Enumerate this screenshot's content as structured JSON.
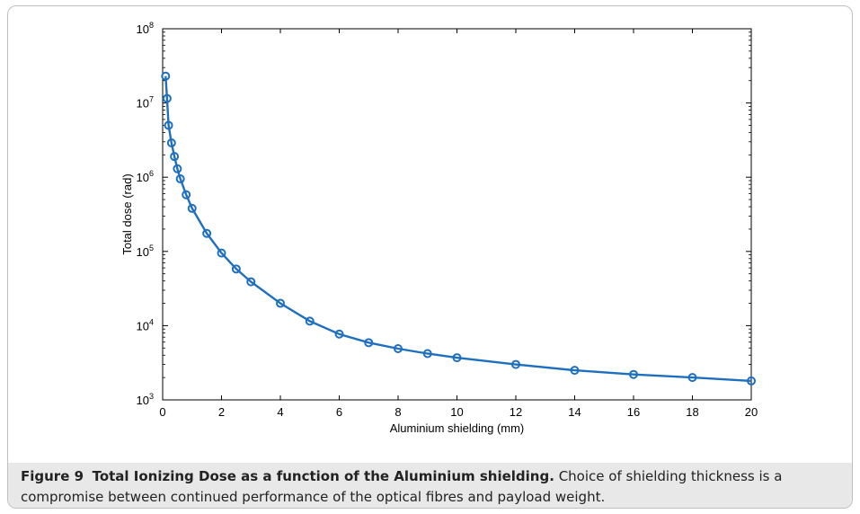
{
  "caption": {
    "label": "Figure 9",
    "title": "Total Ionizing Dose as a function of the Aluminium shielding.",
    "text": "Choice of shielding thickness is a compromise between continued performance of the optical fibres and payload weight."
  },
  "chart_data": {
    "type": "line",
    "title": "",
    "xlabel": "Aluminium shielding (mm)",
    "ylabel": "Total dose (rad)",
    "xlim": [
      0,
      20
    ],
    "ylim": [
      1000,
      100000000
    ],
    "yscale": "log",
    "x_ticks": [
      0,
      2,
      4,
      6,
      8,
      10,
      12,
      14,
      16,
      18,
      20
    ],
    "y_ticks": [
      {
        "value": 1000,
        "base": "10",
        "exp": "3"
      },
      {
        "value": 10000,
        "base": "10",
        "exp": "4"
      },
      {
        "value": 100000,
        "base": "10",
        "exp": "5"
      },
      {
        "value": 1000000,
        "base": "10",
        "exp": "6"
      },
      {
        "value": 10000000,
        "base": "10",
        "exp": "7"
      },
      {
        "value": 100000000,
        "base": "10",
        "exp": "8"
      }
    ],
    "grid": false,
    "line_color": "#1f6fbf",
    "series": [
      {
        "x": [
          0.1,
          0.15,
          0.2,
          0.3,
          0.4,
          0.5,
          0.6,
          0.8,
          1,
          1.5,
          2,
          2.5,
          3,
          4,
          5,
          6,
          7,
          8,
          9,
          10,
          12,
          14,
          16,
          18,
          20
        ],
        "y": [
          23000000,
          11500000,
          5000000,
          2900000,
          1900000,
          1300000,
          950000,
          580000,
          380000,
          175000,
          95000,
          58000,
          39000,
          20000,
          11500,
          7700,
          5900,
          4900,
          4200,
          3700,
          3000,
          2500,
          2200,
          2000,
          1800
        ]
      }
    ]
  }
}
